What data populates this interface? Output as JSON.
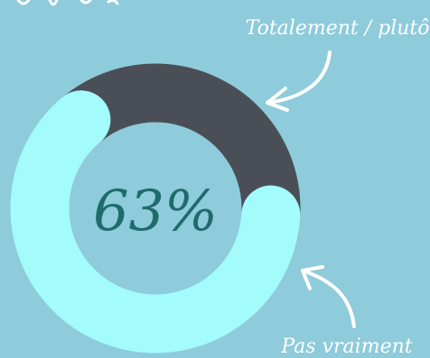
{
  "chart_data": {
    "type": "pie",
    "title": "",
    "center_label": "63%",
    "slices": [
      {
        "label": "Totalement / plutôt",
        "value": 63,
        "color": "#a3fbfb"
      },
      {
        "label": "Pas vraiment",
        "value": 37,
        "color": "#4a4f57"
      }
    ]
  },
  "colors": {
    "background": "#8ecbdb",
    "center_text": "#1f6b6b",
    "annotation": "#ffffff"
  }
}
